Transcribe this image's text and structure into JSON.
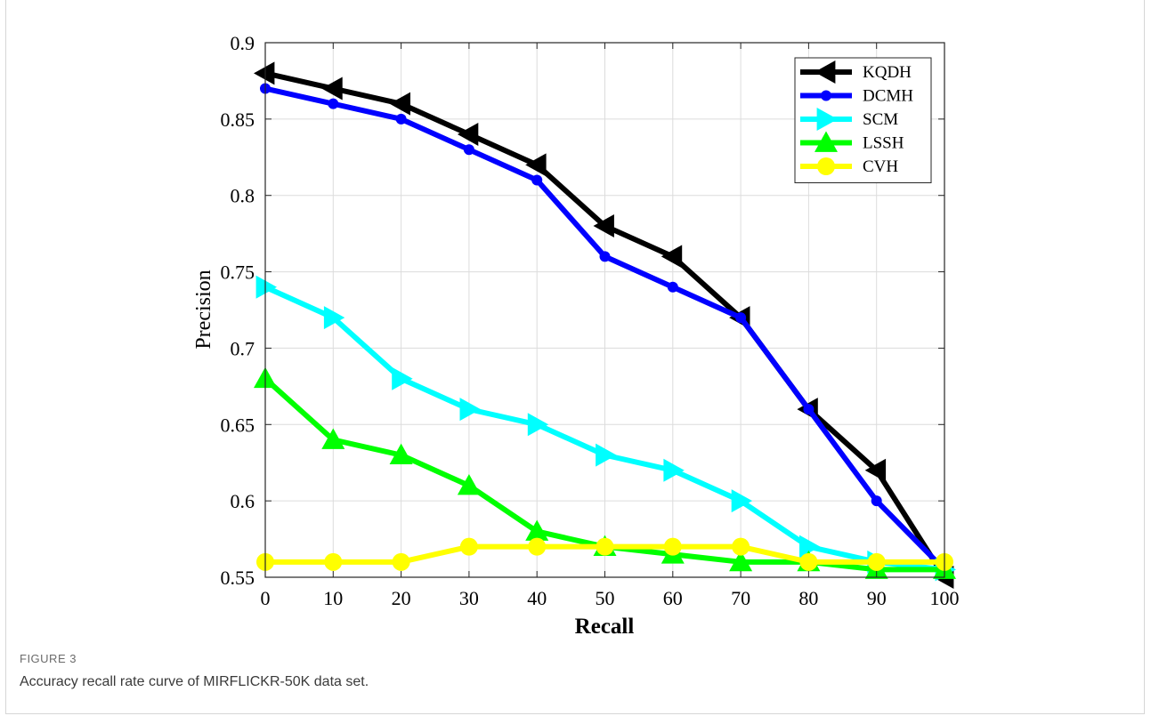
{
  "figure": {
    "label": "FIGURE 3",
    "caption": "Accuracy recall rate curve of MIRFLICKR-50K data set."
  },
  "chart_data": {
    "type": "line",
    "title": "",
    "xlabel": "Recall",
    "ylabel": "Precision",
    "xlim": [
      0,
      100
    ],
    "ylim": [
      0.55,
      0.9
    ],
    "x": [
      0,
      10,
      20,
      30,
      40,
      50,
      60,
      70,
      80,
      90,
      100
    ],
    "xticks": [
      "0",
      "10",
      "20",
      "30",
      "40",
      "50",
      "60",
      "70",
      "80",
      "90",
      "100"
    ],
    "yticks": [
      "0.55",
      "0.6",
      "0.65",
      "0.7",
      "0.75",
      "0.8",
      "0.85",
      "0.9"
    ],
    "grid": true,
    "legend_position": "top-right",
    "series": [
      {
        "name": "KQDH",
        "color": "#000000",
        "marker": "triangle-left",
        "values": [
          0.88,
          0.87,
          0.86,
          0.84,
          0.82,
          0.78,
          0.76,
          0.72,
          0.66,
          0.62,
          0.55
        ]
      },
      {
        "name": "DCMH",
        "color": "#0000ff",
        "marker": "circle-small",
        "values": [
          0.87,
          0.86,
          0.85,
          0.83,
          0.81,
          0.76,
          0.74,
          0.72,
          0.66,
          0.6,
          0.555
        ]
      },
      {
        "name": "SCM",
        "color": "#00ffff",
        "marker": "triangle-right",
        "values": [
          0.74,
          0.72,
          0.68,
          0.66,
          0.65,
          0.63,
          0.62,
          0.6,
          0.57,
          0.56,
          0.555
        ]
      },
      {
        "name": "LSSH",
        "color": "#00ff00",
        "marker": "triangle-up",
        "values": [
          0.68,
          0.64,
          0.63,
          0.61,
          0.58,
          0.57,
          0.565,
          0.56,
          0.56,
          0.555,
          0.555
        ]
      },
      {
        "name": "CVH",
        "color": "#ffff00",
        "marker": "circle-large",
        "values": [
          0.56,
          0.56,
          0.56,
          0.57,
          0.57,
          0.57,
          0.57,
          0.57,
          0.56,
          0.56,
          0.56
        ]
      }
    ]
  }
}
